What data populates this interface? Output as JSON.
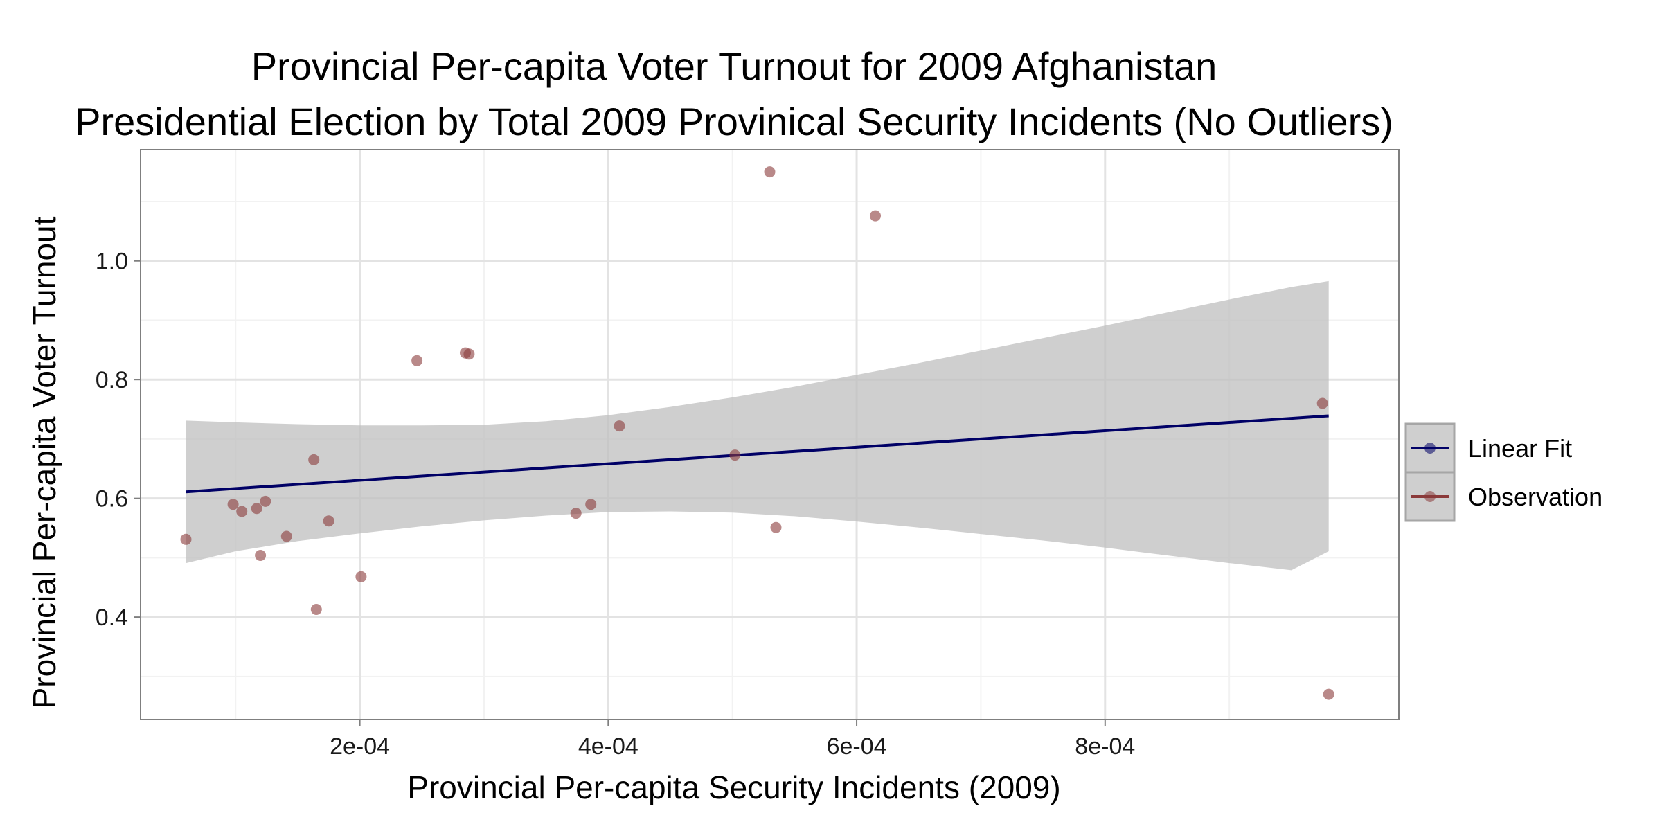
{
  "chart_data": {
    "type": "scatter",
    "title_lines": [
      "Provincial Per-capita Voter Turnout for 2009 Afghanistan",
      "Presidential Election by Total 2009 Provinical Security Incidents (No Outliers)"
    ],
    "xlabel": "Provincial Per-capita Security Incidents (2009)",
    "ylabel": "Provincial Per-capita Voter Turnout",
    "xlim": [
      2.35e-05,
      0.0010365
    ],
    "ylim": [
      0.2275,
      1.1875
    ],
    "x_ticks": [
      {
        "value": 0.0002,
        "label": "2e-04"
      },
      {
        "value": 0.0004,
        "label": "4e-04"
      },
      {
        "value": 0.0006,
        "label": "6e-04"
      },
      {
        "value": 0.0008,
        "label": "8e-04"
      }
    ],
    "y_ticks": [
      {
        "value": 0.4,
        "label": "0.4"
      },
      {
        "value": 0.6,
        "label": "0.6"
      },
      {
        "value": 0.8,
        "label": "0.8"
      },
      {
        "value": 1.0,
        "label": "1.0"
      }
    ],
    "grid": true,
    "legend_position": "right",
    "series": [
      {
        "name": "Observation",
        "color": "#8b3a3a",
        "points": [
          {
            "x": 6e-05,
            "y": 0.531
          },
          {
            "x": 9.8e-05,
            "y": 0.59
          },
          {
            "x": 0.000105,
            "y": 0.578
          },
          {
            "x": 0.000117,
            "y": 0.583
          },
          {
            "x": 0.00012,
            "y": 0.504
          },
          {
            "x": 0.000124,
            "y": 0.595
          },
          {
            "x": 0.000141,
            "y": 0.536
          },
          {
            "x": 0.000163,
            "y": 0.665
          },
          {
            "x": 0.000165,
            "y": 0.413
          },
          {
            "x": 0.000175,
            "y": 0.562
          },
          {
            "x": 0.000201,
            "y": 0.468
          },
          {
            "x": 0.000246,
            "y": 0.832
          },
          {
            "x": 0.000285,
            "y": 0.845
          },
          {
            "x": 0.000288,
            "y": 0.843
          },
          {
            "x": 0.000374,
            "y": 0.575
          },
          {
            "x": 0.000386,
            "y": 0.59
          },
          {
            "x": 0.000409,
            "y": 0.722
          },
          {
            "x": 0.000502,
            "y": 0.673
          },
          {
            "x": 0.00053,
            "y": 1.15
          },
          {
            "x": 0.000535,
            "y": 0.551
          },
          {
            "x": 0.000615,
            "y": 1.076
          },
          {
            "x": 0.000975,
            "y": 0.76
          },
          {
            "x": 0.00098,
            "y": 0.27
          }
        ]
      },
      {
        "name": "Linear Fit",
        "color": "#000066",
        "line": [
          {
            "x": 6e-05,
            "y": 0.611
          },
          {
            "x": 0.00098,
            "y": 0.739
          }
        ],
        "confidence_band": {
          "x": [
            6e-05,
            0.0001,
            0.00015,
            0.0002,
            0.00025,
            0.0003,
            0.00035,
            0.0004,
            0.00045,
            0.0005,
            0.00055,
            0.0006,
            0.00065,
            0.0007,
            0.00075,
            0.0008,
            0.00085,
            0.0009,
            0.00095,
            0.00098
          ],
          "upper": [
            0.731,
            0.728,
            0.725,
            0.723,
            0.723,
            0.724,
            0.73,
            0.74,
            0.754,
            0.77,
            0.788,
            0.808,
            0.828,
            0.849,
            0.87,
            0.891,
            0.913,
            0.935,
            0.956,
            0.966
          ],
          "lower": [
            0.491,
            0.511,
            0.528,
            0.541,
            0.553,
            0.563,
            0.571,
            0.577,
            0.578,
            0.576,
            0.57,
            0.561,
            0.551,
            0.54,
            0.529,
            0.517,
            0.504,
            0.491,
            0.479,
            0.511
          ]
        }
      }
    ],
    "band_color": "#bfbfbf",
    "legend_order": [
      "Linear Fit",
      "Observation"
    ]
  }
}
